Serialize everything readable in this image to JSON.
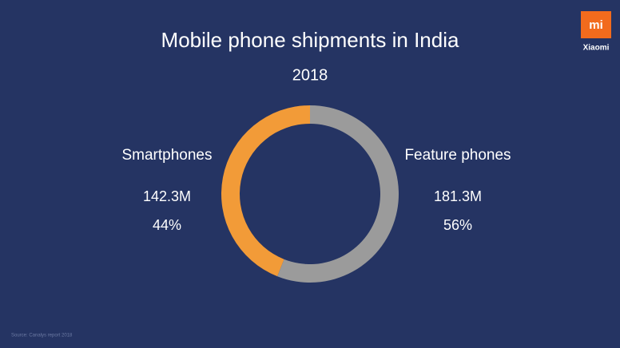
{
  "chart_data": {
    "type": "donut",
    "title": "Mobile phone shipments in India",
    "subtitle": "2018",
    "categories": [
      "Smartphones",
      "Feature phones"
    ],
    "values": [
      44,
      56
    ],
    "value_labels": [
      "44%",
      "56%"
    ],
    "shipments": [
      142300000,
      181300000
    ],
    "shipment_labels": [
      "142.3M",
      "181.3M"
    ],
    "colors": [
      "#f29b38",
      "#9b9b9b"
    ],
    "source": "Source: Canalys report 2018"
  },
  "logo": {
    "mark": "mi",
    "brand": "Xiaomi"
  }
}
